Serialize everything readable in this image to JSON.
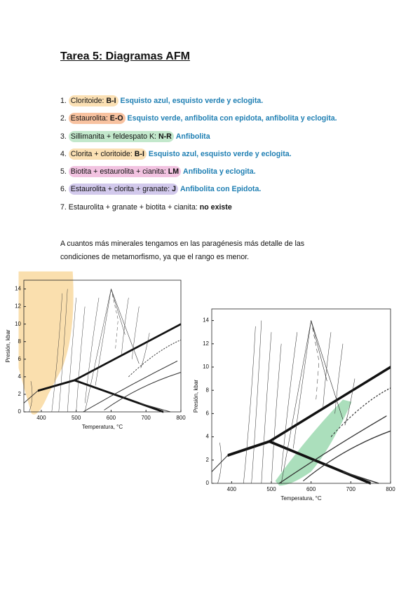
{
  "title": "Tarea 5: Diagramas AFM",
  "items": [
    {
      "number": "1.",
      "minerals": "Cloritoide:",
      "code": "B-I",
      "facies": "Esquisto azul, esquisto verde y eclogita.",
      "highlight": "#fbe0b4"
    },
    {
      "number": "2.",
      "minerals": "Estaurolita:",
      "code": "E-O",
      "facies": "Esquisto verde, anfibolita con epidota, anfibolita y eclogita.",
      "highlight": "#f8c2a0"
    },
    {
      "number": "3.",
      "minerals": "Sillimanita + feldespato K:",
      "code": "N-R",
      "facies": "Anfibolita",
      "highlight": "#c3e8cc"
    },
    {
      "number": "4.",
      "minerals": "Clorita + cloritoide:",
      "code": "B-I",
      "facies": "Esquisto azul, esquisto verde y eclogita.",
      "highlight": "#fbe0b4"
    },
    {
      "number": "5.",
      "minerals": "Biotita + estaurolita + cianita:",
      "code": "LM",
      "facies": "Anfibolita y eclogita.",
      "highlight": "#f2c3e1"
    },
    {
      "number": "6.",
      "minerals": "Estaurolita + clorita + granate:",
      "code": "J",
      "facies": "Anfibolita con Epidota.",
      "highlight": "#d2c9ec"
    },
    {
      "number": "7.",
      "minerals": "Estaurolita + granate + biotita + cianita:",
      "code": "no existe"
    }
  ],
  "paragraph": "A cuantos más minerales tengamos en las paragénesis más detalle de las condiciones de metamorfismo, ya que el rango es menor.",
  "figures": [
    {
      "xlabel": "Temperatura, °C",
      "ylabel": "Presión, kbar",
      "xlim": [
        350,
        800
      ],
      "ylim": [
        0,
        15
      ],
      "xticks": [
        400,
        500,
        600,
        700,
        800
      ],
      "yticks": [
        0,
        2,
        4,
        6,
        8,
        10,
        12,
        14
      ],
      "shading": "#f9d9a0"
    },
    {
      "xlabel": "Temperatura, °C",
      "ylabel": "Presión, kbar",
      "xlim": [
        350,
        800
      ],
      "ylim": [
        0,
        15
      ],
      "xticks": [
        400,
        500,
        600,
        700,
        800
      ],
      "yticks": [
        0,
        2,
        4,
        6,
        8,
        10,
        12,
        14
      ],
      "shading": "#8fd4a6"
    }
  ]
}
